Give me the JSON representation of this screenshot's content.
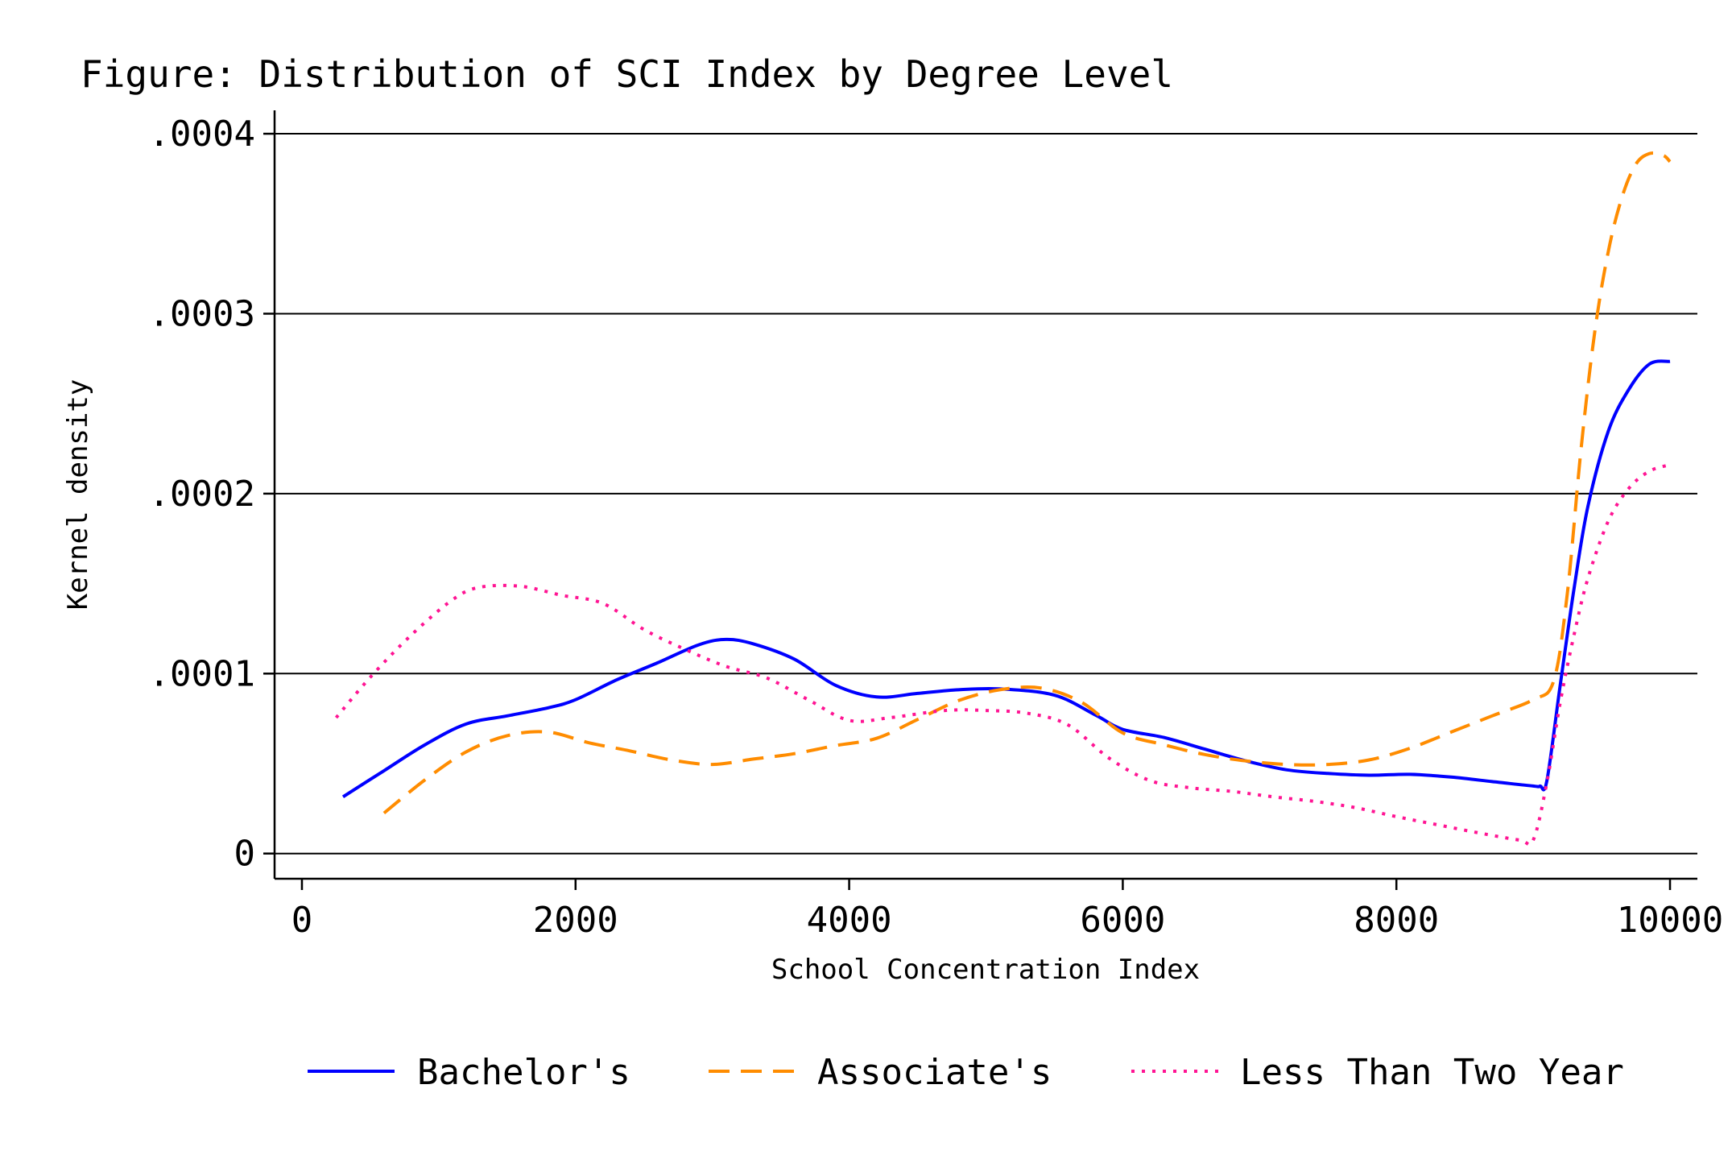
{
  "chart_data": {
    "type": "line",
    "title": "Figure: Distribution of SCI Index by Degree Level",
    "xlabel": "School Concentration Index",
    "ylabel": "Kernel density",
    "xlim": [
      -200,
      10200
    ],
    "ylim": [
      -1.4e-05,
      0.000413
    ],
    "x_ticks": [
      0,
      2000,
      4000,
      6000,
      8000,
      10000
    ],
    "x_tick_labels": [
      "0",
      "2000",
      "4000",
      "6000",
      "8000",
      "10000"
    ],
    "y_ticks": [
      0,
      0.0001,
      0.0002,
      0.0003,
      0.0004
    ],
    "y_tick_labels": [
      "0",
      ".0001",
      ".0002",
      ".0003",
      ".0004"
    ],
    "grid": true,
    "legend_position": "bottom",
    "series": [
      {
        "name": "Bachelor's",
        "color": "#0000ff",
        "dash": "solid",
        "points": [
          [
            300,
            3.15e-05
          ],
          [
            600,
            4.6e-05
          ],
          [
            900,
            6.05e-05
          ],
          [
            1200,
            7.2e-05
          ],
          [
            1500,
            7.65e-05
          ],
          [
            1800,
            8.1e-05
          ],
          [
            2000,
            8.55e-05
          ],
          [
            2300,
            9.65e-05
          ],
          [
            2600,
            0.000106
          ],
          [
            2900,
            0.000116
          ],
          [
            3100,
            0.000119
          ],
          [
            3300,
            0.0001165
          ],
          [
            3600,
            0.000108
          ],
          [
            3900,
            9.35e-05
          ],
          [
            4200,
            8.7e-05
          ],
          [
            4500,
            8.9e-05
          ],
          [
            4800,
            9.1e-05
          ],
          [
            5100,
            9.15e-05
          ],
          [
            5500,
            8.8e-05
          ],
          [
            5800,
            7.7e-05
          ],
          [
            6000,
            6.9e-05
          ],
          [
            6300,
            6.45e-05
          ],
          [
            6600,
            5.8e-05
          ],
          [
            6900,
            5.15e-05
          ],
          [
            7200,
            4.65e-05
          ],
          [
            7500,
            4.45e-05
          ],
          [
            7800,
            4.35e-05
          ],
          [
            8100,
            4.4e-05
          ],
          [
            8400,
            4.25e-05
          ],
          [
            8700,
            4e-05
          ],
          [
            9000,
            3.75e-05
          ],
          [
            9050,
            3.75e-05
          ],
          [
            9100,
            4.05e-05
          ],
          [
            9200,
            9.5e-05
          ],
          [
            9300,
            0.000148
          ],
          [
            9400,
            0.000193
          ],
          [
            9550,
            0.000235
          ],
          [
            9700,
            0.000258
          ],
          [
            9850,
            0.000272
          ],
          [
            10000,
            0.0002735
          ]
        ]
      },
      {
        "name": "Associate's",
        "color": "#ff8c00",
        "dash": "dashed",
        "points": [
          [
            600,
            2.25e-05
          ],
          [
            900,
            4.1e-05
          ],
          [
            1200,
            5.65e-05
          ],
          [
            1500,
            6.55e-05
          ],
          [
            1800,
            6.75e-05
          ],
          [
            2100,
            6.15e-05
          ],
          [
            2400,
            5.7e-05
          ],
          [
            2700,
            5.2e-05
          ],
          [
            3000,
            4.95e-05
          ],
          [
            3300,
            5.25e-05
          ],
          [
            3600,
            5.55e-05
          ],
          [
            3900,
            6e-05
          ],
          [
            4200,
            6.4e-05
          ],
          [
            4500,
            7.45e-05
          ],
          [
            4800,
            8.5e-05
          ],
          [
            5100,
            9.1e-05
          ],
          [
            5400,
            9.2e-05
          ],
          [
            5700,
            8.4e-05
          ],
          [
            6000,
            6.7e-05
          ],
          [
            6300,
            6.05e-05
          ],
          [
            6600,
            5.5e-05
          ],
          [
            6900,
            5.15e-05
          ],
          [
            7200,
            4.95e-05
          ],
          [
            7500,
            4.95e-05
          ],
          [
            7800,
            5.2e-05
          ],
          [
            8100,
            5.85e-05
          ],
          [
            8400,
            6.75e-05
          ],
          [
            8700,
            7.65e-05
          ],
          [
            9000,
            8.55e-05
          ],
          [
            9150,
            9.6e-05
          ],
          [
            9250,
            0.000145
          ],
          [
            9350,
            0.000225
          ],
          [
            9450,
            0.00029
          ],
          [
            9550,
            0.000335
          ],
          [
            9650,
            0.000365
          ],
          [
            9750,
            0.000383
          ],
          [
            9850,
            0.000389
          ],
          [
            9950,
            0.000388
          ],
          [
            10000,
            0.0003845
          ]
        ]
      },
      {
        "name": "Less Than Two Year",
        "color": "#ff1493",
        "dash": "dotted",
        "points": [
          [
            250,
            7.55e-05
          ],
          [
            500,
            9.8e-05
          ],
          [
            800,
            0.0001215
          ],
          [
            1100,
            0.000141
          ],
          [
            1300,
            0.000148
          ],
          [
            1600,
            0.0001485
          ],
          [
            1900,
            0.0001435
          ],
          [
            2200,
            0.000139
          ],
          [
            2500,
            0.0001245
          ],
          [
            2800,
            0.0001135
          ],
          [
            3100,
            0.000104
          ],
          [
            3400,
            9.75e-05
          ],
          [
            3700,
            8.55e-05
          ],
          [
            4000,
            7.4e-05
          ],
          [
            4300,
            7.55e-05
          ],
          [
            4700,
            7.95e-05
          ],
          [
            5000,
            7.95e-05
          ],
          [
            5300,
            7.8e-05
          ],
          [
            5600,
            7.15e-05
          ],
          [
            5900,
            5.3e-05
          ],
          [
            6200,
            4.05e-05
          ],
          [
            6500,
            3.65e-05
          ],
          [
            6800,
            3.45e-05
          ],
          [
            7100,
            3.15e-05
          ],
          [
            7400,
            2.9e-05
          ],
          [
            7700,
            2.55e-05
          ],
          [
            8000,
            2.05e-05
          ],
          [
            8300,
            1.6e-05
          ],
          [
            8600,
            1.15e-05
          ],
          [
            8900,
            7.5e-06
          ],
          [
            9000,
            7.5e-06
          ],
          [
            9100,
            3.95e-05
          ],
          [
            9200,
            8.5e-05
          ],
          [
            9300,
            0.000122
          ],
          [
            9400,
            0.000153
          ],
          [
            9550,
            0.000185
          ],
          [
            9700,
            0.000203
          ],
          [
            9850,
            0.0002125
          ],
          [
            10000,
            0.000216
          ]
        ]
      }
    ]
  }
}
